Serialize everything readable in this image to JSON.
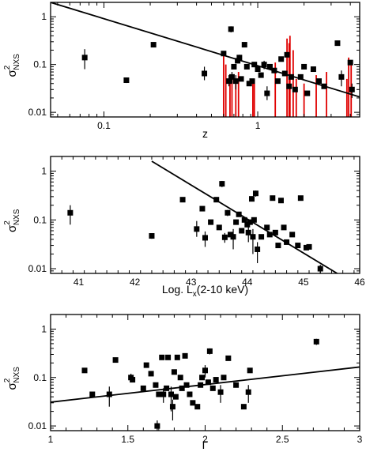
{
  "colors": {
    "axis": "#000000",
    "points": "#000000",
    "fit": "#000000",
    "upper_limits": "#e00000"
  },
  "chart_data": [
    {
      "id": "panel-z",
      "type": "scatter",
      "xscale": "log",
      "yscale": "log",
      "xlim": [
        0.045,
        4.6
      ],
      "ylim": [
        0.008,
        2.0
      ],
      "xticks": [
        0.1,
        1
      ],
      "xticklabels": [
        "0.1",
        "1"
      ],
      "yticks": [
        0.01,
        0.1,
        1
      ],
      "yticklabels": [
        "0.01",
        "0.1",
        "1"
      ],
      "xlabel": "z",
      "ylabel_main": "σ",
      "ylabel_sup": "2",
      "ylabel_sub": "NXS",
      "fit_line": {
        "x": [
          0.045,
          4.6
        ],
        "y": [
          2.0,
          0.021
        ]
      },
      "points": [
        {
          "x": 0.075,
          "y": 0.14,
          "elo": 0.06,
          "ehi": 0.07
        },
        {
          "x": 0.14,
          "y": 0.047,
          "elo": 0.006,
          "ehi": 0.006
        },
        {
          "x": 0.21,
          "y": 0.26,
          "elo": 0.02,
          "ehi": 0.02
        },
        {
          "x": 0.45,
          "y": 0.065,
          "elo": 0.018,
          "ehi": 0.025
        },
        {
          "x": 0.6,
          "y": 0.17
        },
        {
          "x": 0.65,
          "y": 0.045,
          "elo": 0.01,
          "ehi": 0.015
        },
        {
          "x": 0.67,
          "y": 0.55,
          "elo": 0.08,
          "ehi": 0.08
        },
        {
          "x": 0.68,
          "y": 0.055,
          "elo": 0.015,
          "ehi": 0.015
        },
        {
          "x": 0.7,
          "y": 0.09
        },
        {
          "x": 0.72,
          "y": 0.045,
          "elo": 0.015,
          "ehi": 0.015
        },
        {
          "x": 0.74,
          "y": 0.12
        },
        {
          "x": 0.76,
          "y": 0.14,
          "elo": 0.02,
          "ehi": 0.02
        },
        {
          "x": 0.78,
          "y": 0.05
        },
        {
          "x": 0.82,
          "y": 0.26
        },
        {
          "x": 0.85,
          "y": 0.09
        },
        {
          "x": 0.88,
          "y": 0.04
        },
        {
          "x": 0.92,
          "y": 0.045
        },
        {
          "x": 0.95,
          "y": 0.1
        },
        {
          "x": 1.0,
          "y": 0.08
        },
        {
          "x": 1.05,
          "y": 0.06
        },
        {
          "x": 1.1,
          "y": 0.1,
          "elo": 0.02,
          "ehi": 0.02
        },
        {
          "x": 1.15,
          "y": 0.025,
          "elo": 0.007,
          "ehi": 0.01
        },
        {
          "x": 1.2,
          "y": 0.09
        },
        {
          "x": 1.28,
          "y": 0.075
        },
        {
          "x": 1.35,
          "y": 0.045
        },
        {
          "x": 1.42,
          "y": 0.13
        },
        {
          "x": 1.5,
          "y": 0.065
        },
        {
          "x": 1.55,
          "y": 0.16
        },
        {
          "x": 1.6,
          "y": 0.035
        },
        {
          "x": 1.65,
          "y": 0.055
        },
        {
          "x": 1.75,
          "y": 0.03
        },
        {
          "x": 1.9,
          "y": 0.055
        },
        {
          "x": 2.0,
          "y": 0.09
        },
        {
          "x": 2.1,
          "y": 0.025
        },
        {
          "x": 2.3,
          "y": 0.08
        },
        {
          "x": 2.5,
          "y": 0.045
        },
        {
          "x": 2.7,
          "y": 0.035
        },
        {
          "x": 3.3,
          "y": 0.28,
          "elo": 0.03,
          "ehi": 0.03
        },
        {
          "x": 3.5,
          "y": 0.055,
          "elo": 0.02,
          "ehi": 0.02
        },
        {
          "x": 4.0,
          "y": 0.11
        },
        {
          "x": 4.1,
          "y": 0.03,
          "elo": 0.01,
          "ehi": 0.01
        }
      ],
      "upper_limits": [
        {
          "x": 0.6,
          "top": 0.15
        },
        {
          "x": 0.62,
          "top": 0.1
        },
        {
          "x": 0.66,
          "top": 0.06
        },
        {
          "x": 0.68,
          "top": 0.05
        },
        {
          "x": 0.72,
          "top": 0.05
        },
        {
          "x": 0.75,
          "top": 0.07
        },
        {
          "x": 0.93,
          "top": 0.04
        },
        {
          "x": 0.95,
          "top": 0.05
        },
        {
          "x": 1.3,
          "top": 0.11
        },
        {
          "x": 1.55,
          "top": 0.35
        },
        {
          "x": 1.6,
          "top": 0.28
        },
        {
          "x": 1.62,
          "top": 0.4
        },
        {
          "x": 1.7,
          "top": 0.2
        },
        {
          "x": 1.78,
          "top": 0.05
        },
        {
          "x": 2.0,
          "top": 0.04
        },
        {
          "x": 2.4,
          "top": 0.06
        },
        {
          "x": 2.8,
          "top": 0.07
        },
        {
          "x": 3.8,
          "top": 0.05
        },
        {
          "x": 3.9,
          "top": 0.14
        },
        {
          "x": 4.05,
          "top": 0.1
        }
      ]
    },
    {
      "id": "panel-lx",
      "type": "scatter",
      "xscale": "linear",
      "yscale": "log",
      "xlim": [
        40.5,
        46.0
      ],
      "ylim": [
        0.008,
        2.0
      ],
      "xticks": [
        41,
        42,
        43,
        44,
        45,
        46
      ],
      "xticklabels": [
        "41",
        "42",
        "43",
        "44",
        "45",
        "46"
      ],
      "yticks": [
        0.01,
        0.1,
        1
      ],
      "yticklabels": [
        "0.01",
        "0.1",
        "1"
      ],
      "xlabel": "Log. L",
      "xlabel_sub": "x",
      "xlabel_tail": "(2-10 keV)",
      "ylabel_main": "σ",
      "ylabel_sup": "2",
      "ylabel_sub": "NXS",
      "fit_line": {
        "x": [
          42.3,
          45.6
        ],
        "y": [
          1.6,
          0.008
        ]
      },
      "points": [
        {
          "x": 40.85,
          "y": 0.14,
          "elo": 0.06,
          "ehi": 0.06
        },
        {
          "x": 42.3,
          "y": 0.047,
          "elo": 0.006,
          "ehi": 0.006
        },
        {
          "x": 42.85,
          "y": 0.26,
          "elo": 0.02,
          "ehi": 0.02
        },
        {
          "x": 43.1,
          "y": 0.065,
          "elo": 0.02,
          "ehi": 0.03
        },
        {
          "x": 43.2,
          "y": 0.17
        },
        {
          "x": 43.25,
          "y": 0.043,
          "elo": 0.015,
          "ehi": 0.015
        },
        {
          "x": 43.35,
          "y": 0.09
        },
        {
          "x": 43.45,
          "y": 0.26
        },
        {
          "x": 43.5,
          "y": 0.07
        },
        {
          "x": 43.55,
          "y": 0.55,
          "elo": 0.08,
          "ehi": 0.08
        },
        {
          "x": 43.6,
          "y": 0.044,
          "elo": 0.01,
          "ehi": 0.01
        },
        {
          "x": 43.65,
          "y": 0.14,
          "elo": 0.02,
          "ehi": 0.02
        },
        {
          "x": 43.7,
          "y": 0.05
        },
        {
          "x": 43.75,
          "y": 0.045,
          "elo": 0.02,
          "ehi": 0.02
        },
        {
          "x": 43.8,
          "y": 0.09
        },
        {
          "x": 43.85,
          "y": 0.13
        },
        {
          "x": 43.9,
          "y": 0.06
        },
        {
          "x": 43.95,
          "y": 0.1
        },
        {
          "x": 44.0,
          "y": 0.08
        },
        {
          "x": 44.02,
          "y": 0.055,
          "elo": 0.02,
          "ehi": 0.02
        },
        {
          "x": 44.05,
          "y": 0.09
        },
        {
          "x": 44.08,
          "y": 0.27,
          "elo": 0.03,
          "ehi": 0.03
        },
        {
          "x": 44.1,
          "y": 0.045,
          "elo": 0.025,
          "ehi": 0.02
        },
        {
          "x": 44.12,
          "y": 0.1
        },
        {
          "x": 44.15,
          "y": 0.35,
          "elo": 0.05,
          "ehi": 0.05
        },
        {
          "x": 44.18,
          "y": 0.025,
          "elo": 0.012,
          "ehi": 0.01
        },
        {
          "x": 44.25,
          "y": 0.045
        },
        {
          "x": 44.35,
          "y": 0.07
        },
        {
          "x": 44.4,
          "y": 0.05
        },
        {
          "x": 44.45,
          "y": 0.28
        },
        {
          "x": 44.5,
          "y": 0.055
        },
        {
          "x": 44.55,
          "y": 0.03
        },
        {
          "x": 44.6,
          "y": 0.25
        },
        {
          "x": 44.65,
          "y": 0.07
        },
        {
          "x": 44.7,
          "y": 0.035
        },
        {
          "x": 44.8,
          "y": 0.05
        },
        {
          "x": 44.9,
          "y": 0.03
        },
        {
          "x": 44.95,
          "y": 0.28
        },
        {
          "x": 45.05,
          "y": 0.027
        },
        {
          "x": 45.1,
          "y": 0.028
        },
        {
          "x": 45.3,
          "y": 0.01,
          "elo": 0.002,
          "ehi": 0.002
        }
      ]
    },
    {
      "id": "panel-gamma",
      "type": "scatter",
      "xscale": "linear",
      "yscale": "log",
      "xlim": [
        1.0,
        3.0
      ],
      "ylim": [
        0.008,
        2.0
      ],
      "xticks": [
        1,
        1.5,
        2,
        2.5,
        3
      ],
      "xticklabels": [
        "1",
        "1.5",
        "2",
        "2.5",
        "3"
      ],
      "yticks": [
        0.01,
        0.1,
        1
      ],
      "yticklabels": [
        "0.01",
        "0.1",
        "1"
      ],
      "xlabel": "Γ",
      "ylabel_main": "σ",
      "ylabel_sup": "2",
      "ylabel_sub": "NXS",
      "fit_line": {
        "x": [
          1.0,
          3.0
        ],
        "y": [
          0.031,
          0.165
        ]
      },
      "points": [
        {
          "x": 1.22,
          "y": 0.14
        },
        {
          "x": 1.27,
          "y": 0.045
        },
        {
          "x": 1.38,
          "y": 0.045,
          "elo": 0.02,
          "ehi": 0.02
        },
        {
          "x": 1.42,
          "y": 0.23
        },
        {
          "x": 1.52,
          "y": 0.1,
          "elo": 0.02,
          "ehi": 0.02
        },
        {
          "x": 1.53,
          "y": 0.09
        },
        {
          "x": 1.6,
          "y": 0.06
        },
        {
          "x": 1.62,
          "y": 0.18
        },
        {
          "x": 1.65,
          "y": 0.12
        },
        {
          "x": 1.68,
          "y": 0.07
        },
        {
          "x": 1.69,
          "y": 0.01,
          "elo": 0.002,
          "ehi": 0.003
        },
        {
          "x": 1.7,
          "y": 0.045
        },
        {
          "x": 1.72,
          "y": 0.26
        },
        {
          "x": 1.73,
          "y": 0.045,
          "elo": 0.015,
          "ehi": 0.015
        },
        {
          "x": 1.75,
          "y": 0.06
        },
        {
          "x": 1.76,
          "y": 0.26
        },
        {
          "x": 1.78,
          "y": 0.045,
          "elo": 0.025,
          "ehi": 0.02
        },
        {
          "x": 1.79,
          "y": 0.025,
          "elo": 0.012,
          "ehi": 0.01
        },
        {
          "x": 1.8,
          "y": 0.13
        },
        {
          "x": 1.81,
          "y": 0.04
        },
        {
          "x": 1.82,
          "y": 0.26
        },
        {
          "x": 1.84,
          "y": 0.1
        },
        {
          "x": 1.85,
          "y": 0.06
        },
        {
          "x": 1.87,
          "y": 0.28
        },
        {
          "x": 1.88,
          "y": 0.07
        },
        {
          "x": 1.9,
          "y": 0.045
        },
        {
          "x": 1.92,
          "y": 0.03
        },
        {
          "x": 1.95,
          "y": 0.025
        },
        {
          "x": 1.97,
          "y": 0.07
        },
        {
          "x": 1.98,
          "y": 0.1
        },
        {
          "x": 2.0,
          "y": 0.14,
          "elo": 0.04,
          "ehi": 0.04
        },
        {
          "x": 2.02,
          "y": 0.08
        },
        {
          "x": 2.03,
          "y": 0.35,
          "elo": 0.05,
          "ehi": 0.05
        },
        {
          "x": 2.05,
          "y": 0.06
        },
        {
          "x": 2.07,
          "y": 0.09
        },
        {
          "x": 2.1,
          "y": 0.05,
          "elo": 0.02,
          "ehi": 0.02
        },
        {
          "x": 2.12,
          "y": 0.1
        },
        {
          "x": 2.15,
          "y": 0.25
        },
        {
          "x": 2.2,
          "y": 0.07
        },
        {
          "x": 2.25,
          "y": 0.025
        },
        {
          "x": 2.28,
          "y": 0.05,
          "elo": 0.02,
          "ehi": 0.02
        },
        {
          "x": 2.29,
          "y": 0.14
        },
        {
          "x": 2.72,
          "y": 0.55,
          "elo": 0.08,
          "ehi": 0.08
        }
      ]
    }
  ]
}
